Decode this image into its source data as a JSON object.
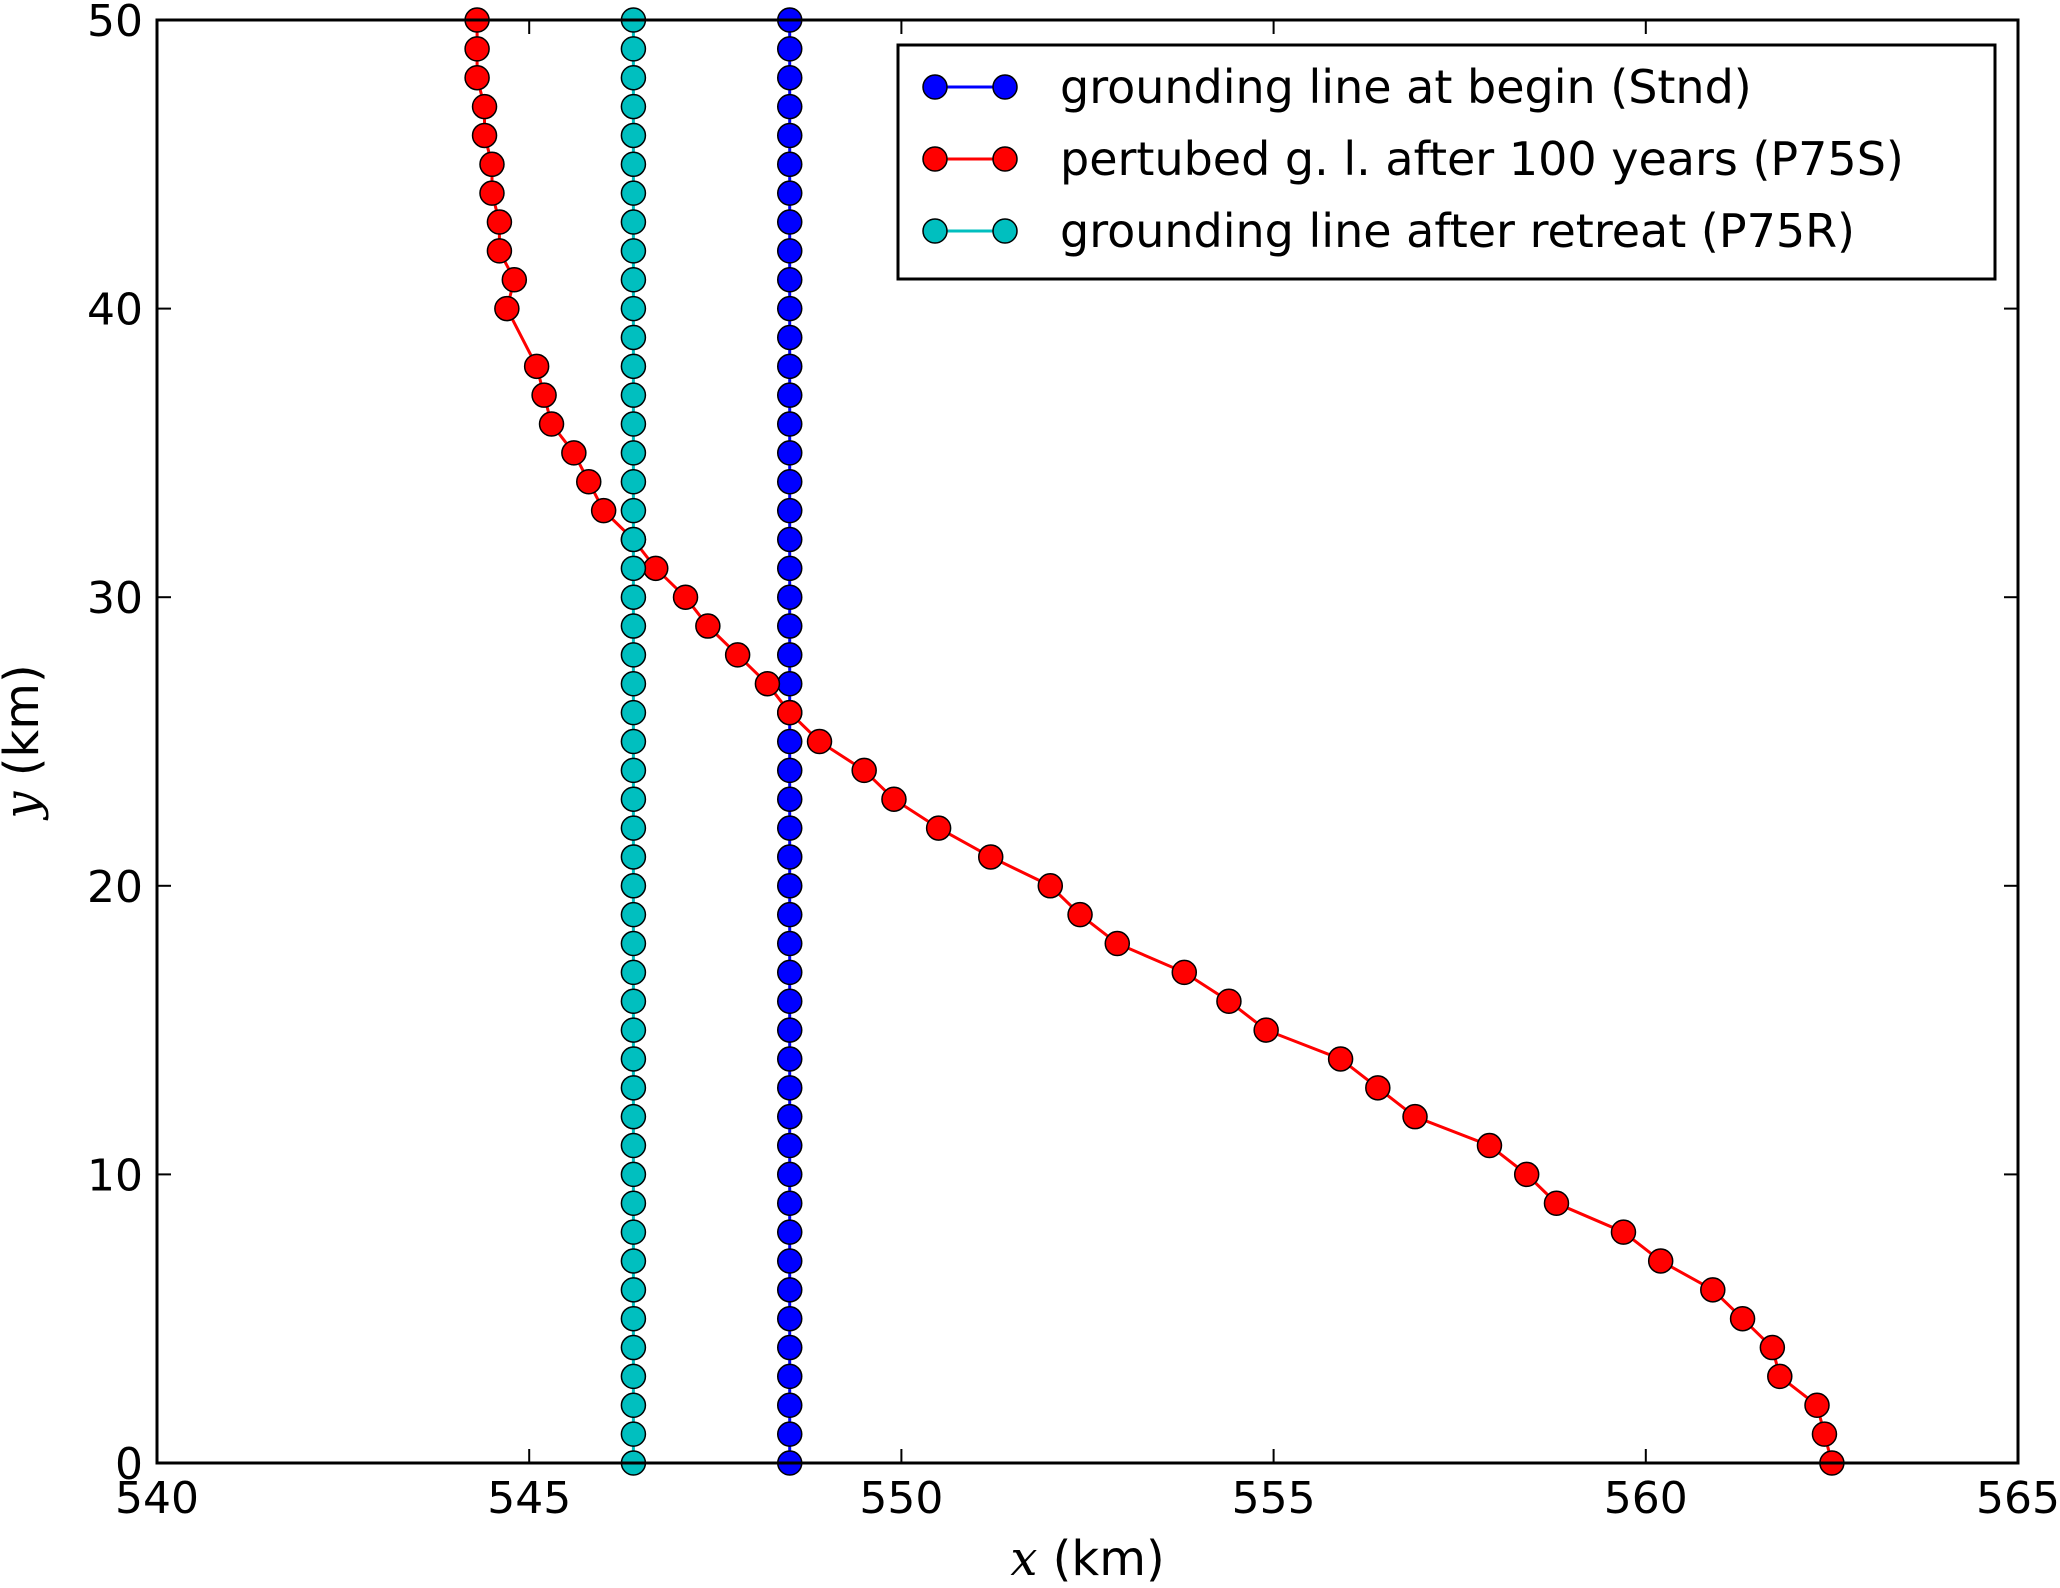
{
  "chart_data": {
    "type": "line",
    "title": "",
    "xlabel": {
      "var": "x",
      "unit": " (km)"
    },
    "ylabel": {
      "var": "y",
      "unit": " (km)"
    },
    "xlim": [
      540,
      565
    ],
    "ylim": [
      0,
      50
    ],
    "xticks": [
      "540",
      "545",
      "550",
      "555",
      "560",
      "565"
    ],
    "yticks": [
      "0",
      "10",
      "20",
      "30",
      "40",
      "50"
    ],
    "grid": false,
    "legend": "top-right",
    "series": [
      {
        "name": "grounding line at begin (Stnd)",
        "color": "#0000ff",
        "marker": "circle",
        "x": [
          548.5,
          548.5,
          548.5,
          548.5,
          548.5,
          548.5,
          548.5,
          548.5,
          548.5,
          548.5,
          548.5,
          548.5,
          548.5,
          548.5,
          548.5,
          548.5,
          548.5,
          548.5,
          548.5,
          548.5,
          548.5,
          548.5,
          548.5,
          548.5,
          548.5,
          548.5,
          548.5,
          548.5,
          548.5,
          548.5,
          548.5,
          548.5,
          548.5,
          548.5,
          548.5,
          548.5,
          548.5,
          548.5,
          548.5,
          548.5,
          548.5,
          548.5,
          548.5,
          548.5,
          548.5,
          548.5,
          548.5,
          548.5,
          548.5,
          548.5,
          548.5
        ],
        "y": [
          0,
          1,
          2,
          3,
          4,
          5,
          6,
          7,
          8,
          9,
          10,
          11,
          12,
          13,
          14,
          15,
          16,
          17,
          18,
          19,
          20,
          21,
          22,
          23,
          24,
          25,
          26,
          27,
          28,
          29,
          30,
          31,
          32,
          33,
          34,
          35,
          36,
          37,
          38,
          39,
          40,
          41,
          42,
          43,
          44,
          45,
          46,
          47,
          48,
          49,
          50
        ]
      },
      {
        "name": "pertubed g. l. after 100 years (P75S)",
        "color": "#ff0000",
        "marker": "circle",
        "x": [
          562.5,
          562.4,
          562.3,
          561.8,
          561.7,
          561.3,
          560.9,
          560.2,
          559.7,
          558.8,
          558.4,
          557.9,
          556.9,
          556.4,
          555.9,
          554.9,
          554.4,
          553.8,
          552.9,
          552.4,
          552.0,
          551.2,
          550.5,
          549.9,
          549.5,
          548.9,
          548.5,
          548.2,
          547.8,
          547.4,
          547.1,
          546.7,
          546.4,
          546.0,
          545.8,
          545.6,
          545.3,
          545.2,
          545.1,
          544.7,
          544.8,
          544.6,
          544.6,
          544.5,
          544.5,
          544.4,
          544.4,
          544.3,
          544.3,
          544.3
        ],
        "y": [
          0,
          1,
          2,
          3,
          4,
          5,
          6,
          7,
          8,
          9,
          10,
          11,
          12,
          13,
          14,
          15,
          16,
          17,
          18,
          19,
          20,
          21,
          22,
          23,
          24,
          25,
          26,
          27,
          28,
          29,
          30,
          31,
          32,
          33,
          34,
          35,
          36,
          37,
          38,
          40,
          41,
          42,
          43,
          44,
          45,
          46,
          47,
          48,
          49,
          50
        ]
      },
      {
        "name": "grounding line after retreat (P75R)",
        "color": "#00bfbf",
        "marker": "circle",
        "x": [
          546.4,
          546.4,
          546.4,
          546.4,
          546.4,
          546.4,
          546.4,
          546.4,
          546.4,
          546.4,
          546.4,
          546.4,
          546.4,
          546.4,
          546.4,
          546.4,
          546.4,
          546.4,
          546.4,
          546.4,
          546.4,
          546.4,
          546.4,
          546.4,
          546.4,
          546.4,
          546.4,
          546.4,
          546.4,
          546.4,
          546.4,
          546.4,
          546.4,
          546.4,
          546.4,
          546.4,
          546.4,
          546.4,
          546.4,
          546.4,
          546.4,
          546.4,
          546.4,
          546.4,
          546.4,
          546.4,
          546.4,
          546.4,
          546.4,
          546.4,
          546.4
        ],
        "y": [
          0,
          1,
          2,
          3,
          4,
          5,
          6,
          7,
          8,
          9,
          10,
          11,
          12,
          13,
          14,
          15,
          16,
          17,
          18,
          19,
          20,
          21,
          22,
          23,
          24,
          25,
          26,
          27,
          28,
          29,
          30,
          31,
          32,
          33,
          34,
          35,
          36,
          37,
          38,
          39,
          40,
          41,
          42,
          43,
          44,
          45,
          46,
          47,
          48,
          49,
          50
        ]
      }
    ]
  }
}
